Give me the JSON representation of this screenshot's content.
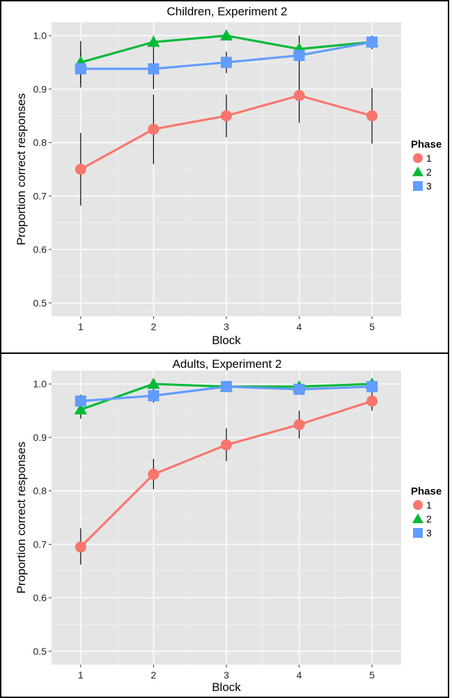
{
  "chart_data": [
    {
      "type": "line",
      "title": "Children, Experiment 2",
      "xlabel": "Block",
      "ylabel": "Proportion correct responses",
      "x": [
        1,
        2,
        3,
        4,
        5
      ],
      "ylim": [
        0.475,
        1.025
      ],
      "yticks": [
        0.5,
        0.6,
        0.7,
        0.8,
        0.9,
        1.0
      ],
      "ytick_labels": [
        "0.5",
        "0.6",
        "0.7",
        "0.8",
        "0.9",
        "1.0"
      ],
      "grid": true,
      "legend": {
        "title": "Phase",
        "position": "right"
      },
      "series": [
        {
          "name": "1",
          "color": "#F8766D",
          "marker": "circle",
          "values": [
            0.75,
            0.825,
            0.85,
            0.888,
            0.85
          ],
          "error_low": [
            0.682,
            0.76,
            0.81,
            0.837,
            0.798
          ],
          "error_high": [
            0.818,
            0.89,
            0.89,
            0.938,
            0.902
          ]
        },
        {
          "name": "2",
          "color": "#00BA38",
          "marker": "triangle",
          "values": [
            0.95,
            0.988,
            1.0,
            0.975,
            0.988
          ],
          "error_low": [
            0.91,
            0.975,
            1.0,
            0.95,
            0.975
          ],
          "error_high": [
            0.99,
            1.0,
            1.0,
            1.0,
            1.0
          ]
        },
        {
          "name": "3",
          "color": "#619CFF",
          "marker": "square",
          "values": [
            0.938,
            0.938,
            0.95,
            0.963,
            0.988
          ],
          "error_low": [
            0.903,
            0.9,
            0.93,
            0.938,
            0.975
          ],
          "error_high": [
            0.972,
            0.975,
            0.97,
            0.988,
            1.0
          ]
        }
      ]
    },
    {
      "type": "line",
      "title": "Adults, Experiment 2",
      "xlabel": "Block",
      "ylabel": "Proportion correct responses",
      "x": [
        1,
        2,
        3,
        4,
        5
      ],
      "ylim": [
        0.475,
        1.025
      ],
      "yticks": [
        0.5,
        0.6,
        0.7,
        0.8,
        0.9,
        1.0
      ],
      "ytick_labels": [
        "0.5",
        "0.6",
        "0.7",
        "0.8",
        "0.9",
        "1.0"
      ],
      "grid": true,
      "legend": {
        "title": "Phase",
        "position": "right"
      },
      "series": [
        {
          "name": "1",
          "color": "#F8766D",
          "marker": "circle",
          "values": [
            0.695,
            0.831,
            0.886,
            0.924,
            0.968
          ],
          "error_low": [
            0.662,
            0.803,
            0.856,
            0.898,
            0.95
          ],
          "error_high": [
            0.73,
            0.86,
            0.917,
            0.95,
            0.985
          ]
        },
        {
          "name": "2",
          "color": "#00BA38",
          "marker": "triangle",
          "values": [
            0.952,
            1.0,
            0.995,
            0.995,
            1.0
          ],
          "error_low": [
            0.935,
            0.99,
            0.985,
            0.985,
            0.99
          ],
          "error_high": [
            0.97,
            1.0,
            1.0,
            1.0,
            1.0
          ]
        },
        {
          "name": "3",
          "color": "#619CFF",
          "marker": "square",
          "values": [
            0.968,
            0.978,
            0.995,
            0.99,
            0.995
          ],
          "error_low": [
            0.955,
            0.965,
            0.985,
            0.98,
            0.985
          ],
          "error_high": [
            0.98,
            0.99,
            1.0,
            1.0,
            1.0
          ]
        }
      ]
    }
  ]
}
